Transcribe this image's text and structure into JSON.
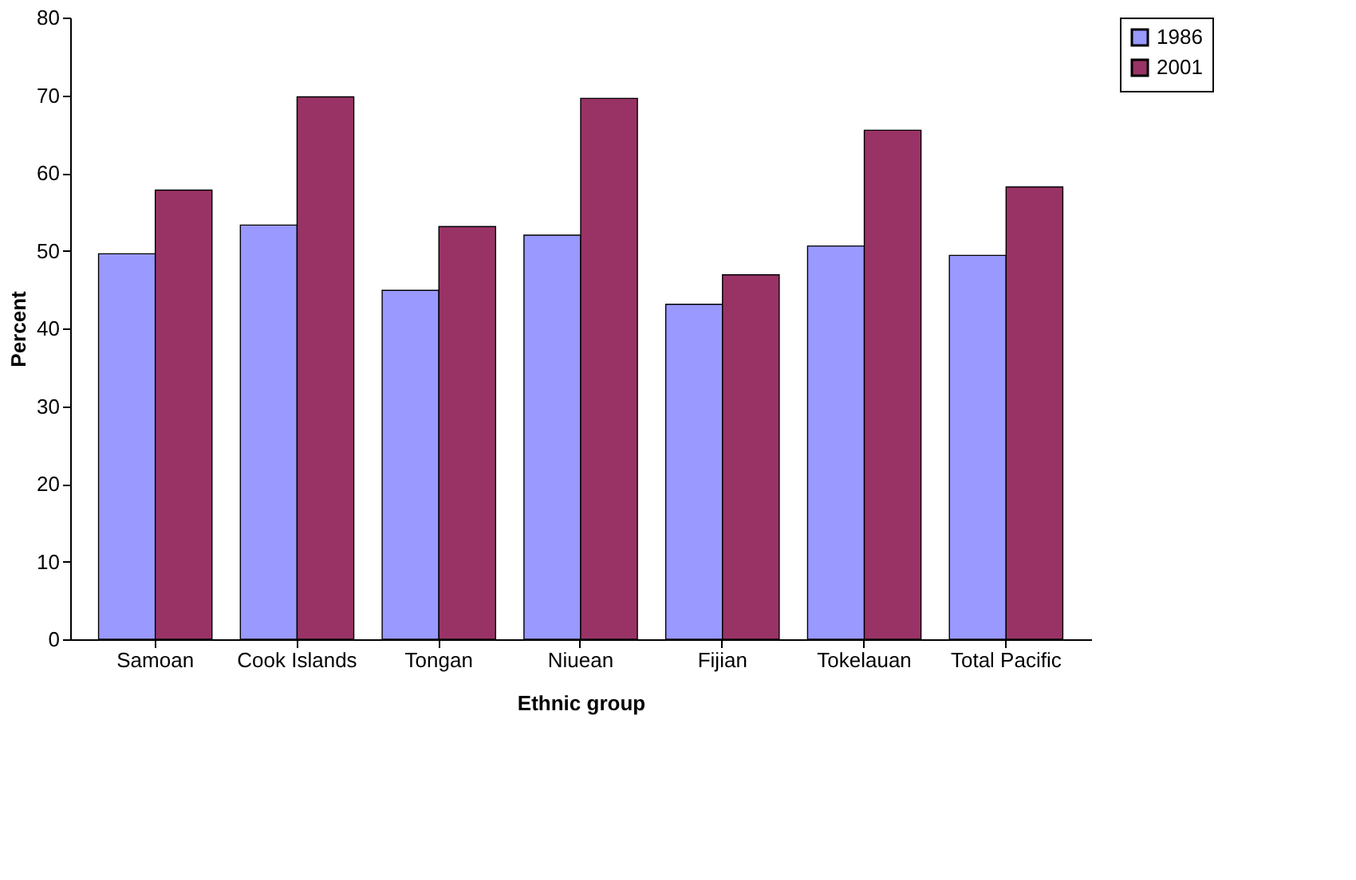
{
  "chart_data": {
    "type": "bar",
    "xlabel": "Ethnic group",
    "ylabel": "Percent",
    "categories": [
      "Samoan",
      "Cook Islands",
      "Tongan",
      "Niuean",
      "Fijian",
      "Tokelauan",
      "Total Pacific"
    ],
    "series": [
      {
        "name": "1986",
        "color": "#9999ff",
        "values": [
          49.6,
          53.3,
          44.9,
          52.0,
          43.1,
          50.6,
          49.4
        ]
      },
      {
        "name": "2001",
        "color": "#993366",
        "values": [
          57.8,
          69.8,
          53.1,
          69.6,
          46.9,
          65.5,
          58.2
        ]
      }
    ],
    "ylim": [
      0,
      80
    ],
    "yticks": [
      0,
      10,
      20,
      30,
      40,
      50,
      60,
      70,
      80
    ],
    "grid": false,
    "legend": "right"
  }
}
